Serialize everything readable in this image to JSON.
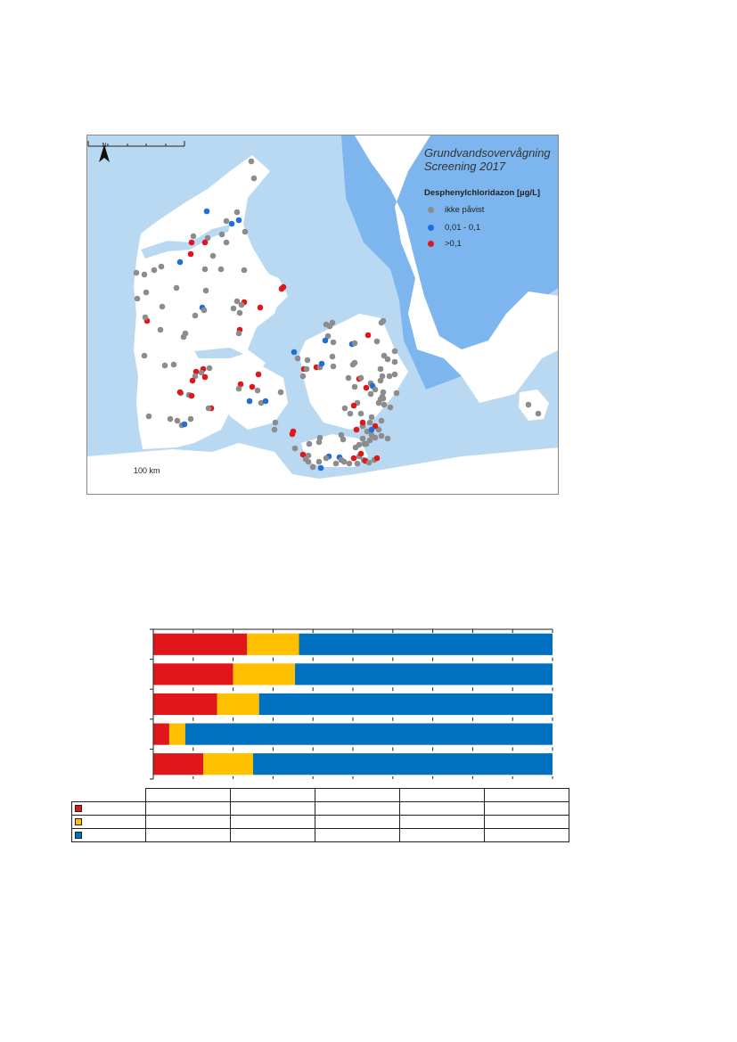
{
  "map": {
    "title_line1": "Grundvandsovervågning",
    "title_line2": "Screening 2017",
    "legend_title": "Desphenylchloridazon [µg/L]",
    "legend": [
      {
        "label": "ikke påvist",
        "color": "#8c8c8c"
      },
      {
        "label": "0,01 - 0,1",
        "color": "#1f6fd6"
      },
      {
        "label": ">0,1",
        "color": "#e0161b"
      }
    ],
    "scale_label": "100 km",
    "north_label": "N",
    "colors": {
      "sea_light": "#b9d9f2",
      "sea_dark": "#7db6ee",
      "land": "#ffffff"
    }
  },
  "chart_data": {
    "type": "bar",
    "orientation": "horizontal",
    "stacked": true,
    "categories": [
      "",
      "",
      "",
      "",
      ""
    ],
    "series": [
      {
        "values": [
          23.5,
          20,
          16,
          4,
          12.5
        ],
        "color": "#e0161b"
      },
      {
        "values": [
          13,
          15.5,
          10.5,
          4,
          12.5
        ],
        "color": "#ffc000"
      },
      {
        "values": [
          63.5,
          64.5,
          73.5,
          92,
          75
        ],
        "color": "#0070c0"
      }
    ],
    "xlim": [
      0,
      100
    ],
    "table": {
      "rows": [
        {
          "swatch_color": "#e0161b",
          "cells": [
            "",
            "",
            "",
            "",
            ""
          ]
        },
        {
          "swatch_color": "#ffc000",
          "cells": [
            "",
            "",
            "",
            "",
            ""
          ]
        },
        {
          "swatch_color": "#0070c0",
          "cells": [
            "",
            "",
            "",
            "",
            ""
          ]
        }
      ]
    }
  }
}
